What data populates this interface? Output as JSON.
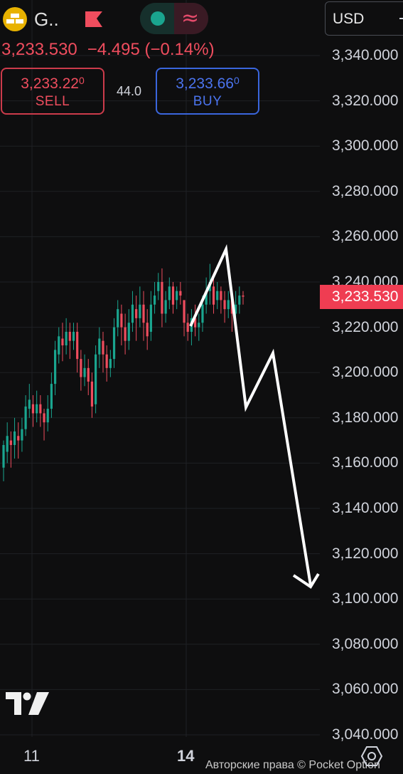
{
  "header": {
    "symbol": "G..",
    "currency": "USD",
    "quote": {
      "price": "3,233.530",
      "change": "−4.495 (−0.14%)"
    },
    "sell": {
      "price_main": "3,233.22",
      "price_sup": "0",
      "label": "SELL"
    },
    "buy": {
      "price_main": "3,233.66",
      "price_sup": "0",
      "label": "BUY"
    },
    "spread": "44.0"
  },
  "price_axis": {
    "labels": [
      "3,340.000",
      "3,320.000",
      "3,300.000",
      "3,280.000",
      "3,260.000",
      "3,240.000",
      "3,220.000",
      "3,200.000",
      "3,180.000",
      "3,160.000",
      "3,140.000",
      "3,120.000",
      "3,100.000",
      "3,080.000",
      "3,060.000",
      "3,040.000"
    ],
    "current_price": "3,233.530"
  },
  "time_axis": {
    "labels": [
      "11",
      "14"
    ]
  },
  "footer": {
    "copyright": "Авторские права © Pocket Option"
  },
  "icons": {
    "logo": "gold-bars-icon",
    "flag": "flag-icon",
    "toggle": "indicator-toggle-icon",
    "wave": "wave-icon",
    "tradingview": "tradingview-logo",
    "settings": "settings-icon"
  },
  "colors": {
    "bg": "#0e0e0f",
    "up": "#1aa58f",
    "down": "#ef4d5e",
    "buy": "#4b74ee",
    "price_tag": "#ef3d52"
  },
  "chart_data": {
    "type": "candlestick",
    "ylim": [
      3030,
      3350
    ],
    "candles": [
      [
        3158,
        3168,
        3152,
        3170
      ],
      [
        3165,
        3172,
        3160,
        3178
      ],
      [
        3170,
        3168,
        3158,
        3174
      ],
      [
        3168,
        3174,
        3162,
        3180
      ],
      [
        3172,
        3170,
        3162,
        3178
      ],
      [
        3170,
        3175,
        3165,
        3180
      ],
      [
        3175,
        3185,
        3172,
        3190
      ],
      [
        3184,
        3188,
        3180,
        3195
      ],
      [
        3186,
        3182,
        3176,
        3190
      ],
      [
        3182,
        3186,
        3178,
        3192
      ],
      [
        3186,
        3182,
        3176,
        3190
      ],
      [
        3182,
        3178,
        3170,
        3184
      ],
      [
        3178,
        3184,
        3174,
        3190
      ],
      [
        3184,
        3195,
        3180,
        3200
      ],
      [
        3195,
        3210,
        3190,
        3214
      ],
      [
        3208,
        3216,
        3204,
        3220
      ],
      [
        3215,
        3212,
        3205,
        3222
      ],
      [
        3212,
        3218,
        3208,
        3224
      ],
      [
        3218,
        3214,
        3206,
        3222
      ],
      [
        3214,
        3218,
        3210,
        3222
      ],
      [
        3218,
        3206,
        3200,
        3222
      ],
      [
        3206,
        3198,
        3192,
        3210
      ],
      [
        3198,
        3202,
        3194,
        3208
      ],
      [
        3202,
        3196,
        3190,
        3206
      ],
      [
        3196,
        3185,
        3180,
        3200
      ],
      [
        3186,
        3208,
        3182,
        3212
      ],
      [
        3208,
        3215,
        3202,
        3220
      ],
      [
        3214,
        3208,
        3200,
        3218
      ],
      [
        3208,
        3202,
        3196,
        3212
      ],
      [
        3202,
        3206,
        3198,
        3210
      ],
      [
        3206,
        3220,
        3202,
        3224
      ],
      [
        3220,
        3228,
        3216,
        3232
      ],
      [
        3226,
        3220,
        3212,
        3230
      ],
      [
        3220,
        3214,
        3208,
        3226
      ],
      [
        3214,
        3222,
        3210,
        3228
      ],
      [
        3222,
        3230,
        3218,
        3236
      ],
      [
        3228,
        3224,
        3214,
        3234
      ],
      [
        3224,
        3230,
        3220,
        3238
      ],
      [
        3230,
        3222,
        3214,
        3236
      ],
      [
        3222,
        3216,
        3210,
        3228
      ],
      [
        3218,
        3230,
        3214,
        3236
      ],
      [
        3230,
        3234,
        3226,
        3240
      ],
      [
        3236,
        3240,
        3232,
        3244
      ],
      [
        3240,
        3226,
        3220,
        3246
      ],
      [
        3226,
        3232,
        3222,
        3236
      ],
      [
        3232,
        3238,
        3228,
        3242
      ],
      [
        3238,
        3230,
        3226,
        3240
      ],
      [
        3232,
        3236,
        3228,
        3238
      ],
      [
        3236,
        3234,
        3230,
        3240
      ],
      [
        3232,
        3222,
        3216,
        3230
      ],
      [
        3222,
        3218,
        3214,
        3226
      ],
      [
        3218,
        3224,
        3212,
        3228
      ],
      [
        3224,
        3220,
        3216,
        3230
      ],
      [
        3220,
        3222,
        3214,
        3226
      ],
      [
        3222,
        3230,
        3218,
        3234
      ],
      [
        3230,
        3236,
        3226,
        3242
      ],
      [
        3236,
        3240,
        3230,
        3248
      ],
      [
        3238,
        3230,
        3226,
        3244
      ],
      [
        3232,
        3236,
        3228,
        3240
      ],
      [
        3236,
        3232,
        3226,
        3238
      ],
      [
        3232,
        3228,
        3222,
        3236
      ],
      [
        3228,
        3232,
        3224,
        3236
      ],
      [
        3232,
        3226,
        3218,
        3234
      ],
      [
        3226,
        3230,
        3222,
        3236
      ],
      [
        3230,
        3234,
        3226,
        3238
      ],
      [
        3234,
        3233.53,
        3230,
        3236
      ]
    ],
    "drawing_line": [
      [
        "14",
        3222
      ],
      [
        "14+",
        3260
      ],
      [
        "14+",
        3185
      ],
      [
        "14+",
        3208
      ],
      [
        "14+",
        3108
      ]
    ]
  }
}
